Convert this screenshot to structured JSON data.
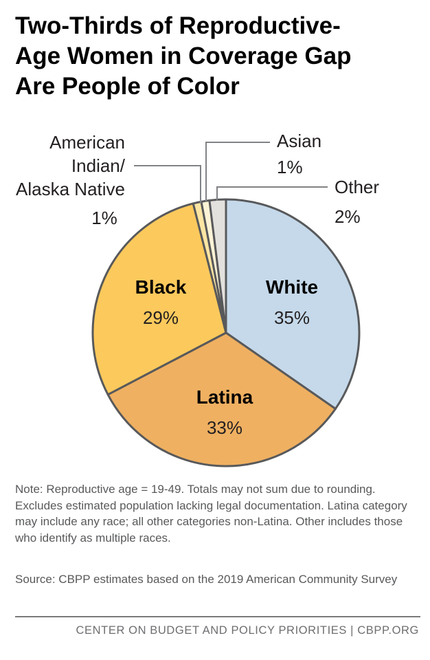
{
  "title_lines": [
    "Two-Thirds of Reproductive-",
    "Age Women in Coverage Gap",
    "Are People of Color"
  ],
  "chart_data": {
    "type": "pie",
    "title": "Two-Thirds of Reproductive-Age Women in Coverage Gap Are People of Color",
    "slices": [
      {
        "label": "White",
        "value": 35,
        "display": "35%",
        "color": "#c5d9ea"
      },
      {
        "label": "Latina",
        "value": 33,
        "display": "33%",
        "color": "#efb061"
      },
      {
        "label": "Black",
        "value": 29,
        "display": "29%",
        "color": "#fcc95c"
      },
      {
        "label": "American Indian/ Alaska Native",
        "value": 1,
        "display": "1%",
        "color": "#fde5a3"
      },
      {
        "label": "Asian",
        "value": 1,
        "display": "1%",
        "color": "#fdf3d6"
      },
      {
        "label": "Other",
        "value": 2,
        "display": "2%",
        "color": "#e3e1dd"
      }
    ],
    "outline_color": "#58595b",
    "leader_color": "#808285"
  },
  "labels": {
    "white": {
      "name": "White",
      "value": "35%"
    },
    "latina": {
      "name": "Latina",
      "value": "33%"
    },
    "black": {
      "name": "Black",
      "value": "29%"
    },
    "aian": {
      "lines": [
        "American",
        "Indian/",
        "Alaska Native"
      ],
      "value": "1%"
    },
    "asian": {
      "name": "Asian",
      "value": "1%"
    },
    "other": {
      "name": "Other",
      "value": "2%"
    }
  },
  "note": "Note: Reproductive age = 19-49. Totals may not sum due to rounding. Excludes estimated population lacking legal documentation. Latina category may include any race; all other categories non-Latina. Other includes those who identify as multiple races.",
  "source": "Source: CBPP estimates based on the 2019 American Community Survey",
  "footer": "CENTER ON BUDGET AND POLICY PRIORITIES | CBPP.ORG"
}
